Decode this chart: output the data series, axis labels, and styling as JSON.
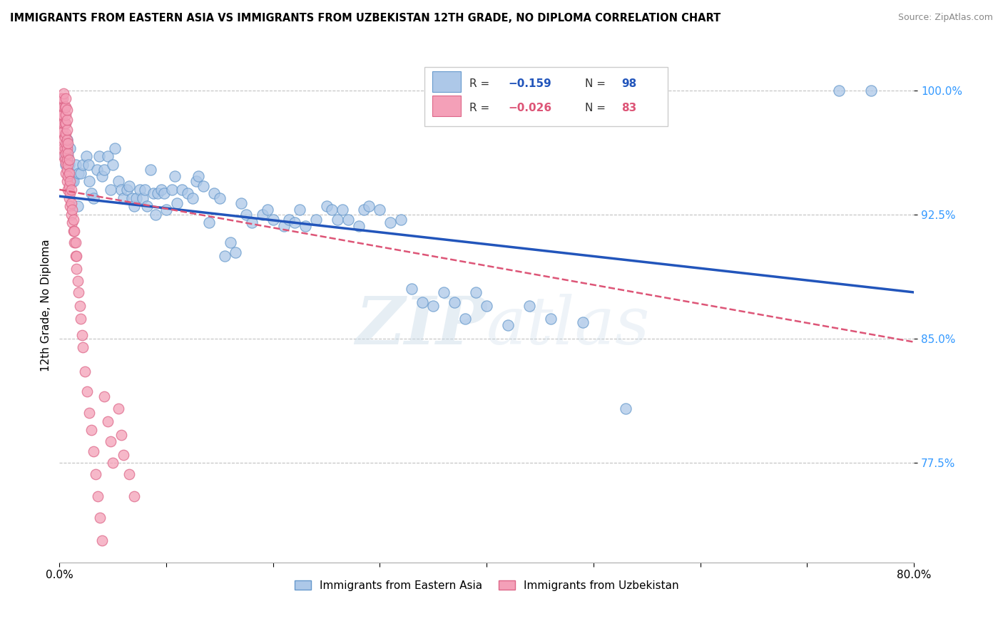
{
  "title": "IMMIGRANTS FROM EASTERN ASIA VS IMMIGRANTS FROM UZBEKISTAN 12TH GRADE, NO DIPLOMA CORRELATION CHART",
  "source": "Source: ZipAtlas.com",
  "ylabel": "12th Grade, No Diploma",
  "x_min": 0.0,
  "x_max": 0.8,
  "y_min": 0.715,
  "y_max": 1.025,
  "x_ticks": [
    0.0,
    0.1,
    0.2,
    0.3,
    0.4,
    0.5,
    0.6,
    0.7,
    0.8
  ],
  "y_ticks": [
    0.775,
    0.85,
    0.925,
    1.0
  ],
  "y_tick_labels": [
    "77.5%",
    "85.0%",
    "92.5%",
    "100.0%"
  ],
  "scatter1_color": "#adc8e8",
  "scatter1_edge": "#6699cc",
  "scatter2_color": "#f4a0b8",
  "scatter2_edge": "#dd6688",
  "line1_color": "#2255bb",
  "line2_color": "#dd5577",
  "watermark": "ZIPatlas",
  "legend_label1": "Immigrants from Eastern Asia",
  "legend_label2": "Immigrants from Uzbekistan",
  "blue_r_color": "#2255bb",
  "pink_r_color": "#dd5577",
  "blue_line_x0": 0.0,
  "blue_line_y0": 0.936,
  "blue_line_x1": 0.8,
  "blue_line_y1": 0.878,
  "pink_line_x0": 0.0,
  "pink_line_y0": 0.94,
  "pink_line_x1": 0.8,
  "pink_line_y1": 0.848,
  "scatter1_x": [
    0.005,
    0.006,
    0.007,
    0.008,
    0.009,
    0.01,
    0.011,
    0.012,
    0.013,
    0.015,
    0.017,
    0.018,
    0.02,
    0.022,
    0.025,
    0.027,
    0.028,
    0.03,
    0.032,
    0.035,
    0.037,
    0.04,
    0.042,
    0.045,
    0.048,
    0.05,
    0.052,
    0.055,
    0.058,
    0.06,
    0.063,
    0.065,
    0.068,
    0.07,
    0.072,
    0.075,
    0.078,
    0.08,
    0.082,
    0.085,
    0.088,
    0.09,
    0.092,
    0.095,
    0.098,
    0.1,
    0.105,
    0.108,
    0.11,
    0.115,
    0.12,
    0.125,
    0.128,
    0.13,
    0.135,
    0.14,
    0.145,
    0.15,
    0.155,
    0.16,
    0.165,
    0.17,
    0.175,
    0.18,
    0.19,
    0.195,
    0.2,
    0.21,
    0.215,
    0.22,
    0.225,
    0.23,
    0.24,
    0.25,
    0.255,
    0.26,
    0.265,
    0.27,
    0.28,
    0.285,
    0.29,
    0.3,
    0.31,
    0.32,
    0.33,
    0.34,
    0.35,
    0.36,
    0.37,
    0.38,
    0.39,
    0.4,
    0.42,
    0.44,
    0.46,
    0.49,
    0.53,
    0.73,
    0.76
  ],
  "scatter1_y": [
    0.96,
    0.955,
    0.97,
    0.96,
    0.955,
    0.965,
    0.945,
    0.945,
    0.945,
    0.955,
    0.93,
    0.95,
    0.95,
    0.955,
    0.96,
    0.955,
    0.945,
    0.938,
    0.935,
    0.952,
    0.96,
    0.948,
    0.952,
    0.96,
    0.94,
    0.955,
    0.965,
    0.945,
    0.94,
    0.935,
    0.94,
    0.942,
    0.935,
    0.93,
    0.935,
    0.94,
    0.935,
    0.94,
    0.93,
    0.952,
    0.938,
    0.925,
    0.938,
    0.94,
    0.938,
    0.928,
    0.94,
    0.948,
    0.932,
    0.94,
    0.938,
    0.935,
    0.945,
    0.948,
    0.942,
    0.92,
    0.938,
    0.935,
    0.9,
    0.908,
    0.902,
    0.932,
    0.925,
    0.92,
    0.925,
    0.928,
    0.922,
    0.918,
    0.922,
    0.92,
    0.928,
    0.918,
    0.922,
    0.93,
    0.928,
    0.922,
    0.928,
    0.922,
    0.918,
    0.928,
    0.93,
    0.928,
    0.92,
    0.922,
    0.88,
    0.872,
    0.87,
    0.878,
    0.872,
    0.862,
    0.878,
    0.87,
    0.858,
    0.87,
    0.862,
    0.86,
    0.808,
    1.0,
    1.0
  ],
  "scatter2_x": [
    0.001,
    0.001,
    0.002,
    0.002,
    0.002,
    0.003,
    0.003,
    0.003,
    0.003,
    0.004,
    0.004,
    0.004,
    0.004,
    0.004,
    0.005,
    0.005,
    0.005,
    0.005,
    0.005,
    0.006,
    0.006,
    0.006,
    0.006,
    0.006,
    0.006,
    0.006,
    0.006,
    0.006,
    0.007,
    0.007,
    0.007,
    0.007,
    0.007,
    0.007,
    0.007,
    0.007,
    0.008,
    0.008,
    0.008,
    0.008,
    0.008,
    0.009,
    0.009,
    0.009,
    0.009,
    0.01,
    0.01,
    0.01,
    0.011,
    0.011,
    0.011,
    0.012,
    0.012,
    0.013,
    0.013,
    0.014,
    0.014,
    0.015,
    0.015,
    0.016,
    0.016,
    0.017,
    0.018,
    0.019,
    0.02,
    0.021,
    0.022,
    0.024,
    0.026,
    0.028,
    0.03,
    0.032,
    0.034,
    0.036,
    0.038,
    0.04,
    0.042,
    0.045,
    0.048,
    0.05,
    0.055,
    0.058,
    0.06,
    0.065,
    0.07
  ],
  "scatter2_y": [
    0.985,
    0.995,
    0.975,
    0.985,
    0.995,
    0.965,
    0.975,
    0.985,
    0.995,
    0.96,
    0.97,
    0.98,
    0.99,
    0.998,
    0.958,
    0.965,
    0.972,
    0.98,
    0.99,
    0.95,
    0.956,
    0.962,
    0.968,
    0.974,
    0.98,
    0.985,
    0.99,
    0.995,
    0.945,
    0.952,
    0.958,
    0.965,
    0.97,
    0.976,
    0.982,
    0.988,
    0.94,
    0.948,
    0.955,
    0.962,
    0.968,
    0.935,
    0.942,
    0.95,
    0.958,
    0.93,
    0.938,
    0.945,
    0.925,
    0.932,
    0.94,
    0.92,
    0.928,
    0.915,
    0.922,
    0.908,
    0.915,
    0.9,
    0.908,
    0.892,
    0.9,
    0.885,
    0.878,
    0.87,
    0.862,
    0.852,
    0.845,
    0.83,
    0.818,
    0.805,
    0.795,
    0.782,
    0.768,
    0.755,
    0.742,
    0.728,
    0.815,
    0.8,
    0.788,
    0.775,
    0.808,
    0.792,
    0.78,
    0.768,
    0.755
  ]
}
